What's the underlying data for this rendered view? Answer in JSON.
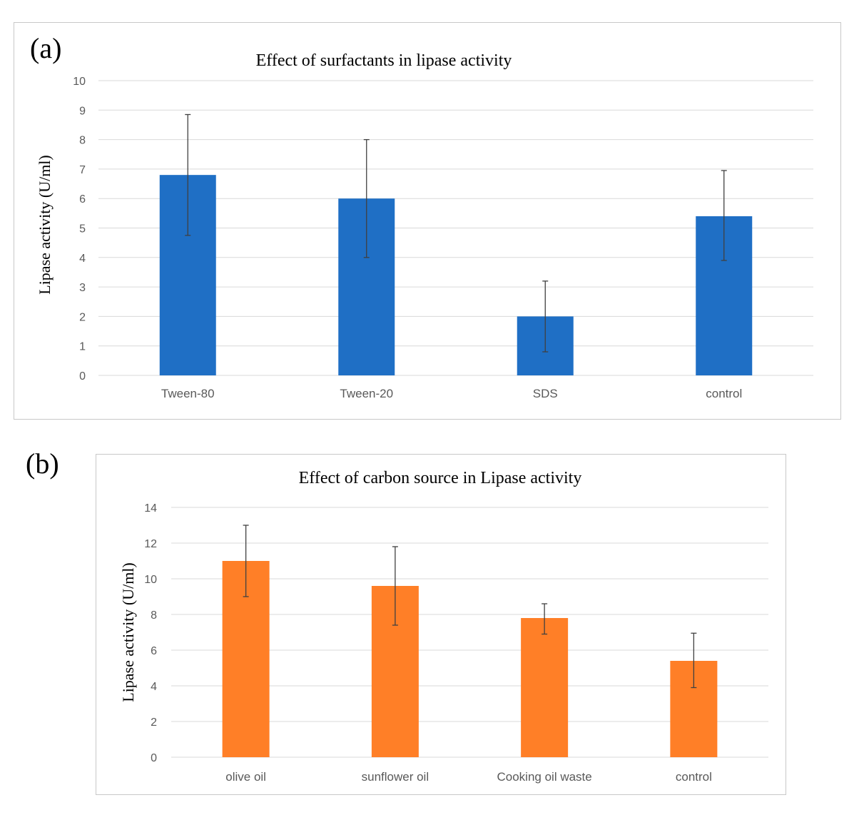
{
  "figure": {
    "panel_a_letter": "(a)",
    "panel_b_letter": "(b)"
  },
  "chart_data": [
    {
      "type": "bar",
      "title": "Effect  of  surfactants  in  lipase  activity",
      "xlabel": "",
      "ylabel": "Lipase  activity  (U/ml)",
      "categories": [
        "Tween-80",
        "Tween-20",
        "SDS",
        "control"
      ],
      "values": [
        6.8,
        6.0,
        2.0,
        5.4
      ],
      "error_low": [
        4.75,
        4.0,
        0.8,
        3.9
      ],
      "error_high": [
        8.85,
        8.0,
        3.2,
        6.95
      ],
      "ylim": [
        0,
        10
      ],
      "yticks": [
        0,
        1,
        2,
        3,
        4,
        5,
        6,
        7,
        8,
        9,
        10
      ],
      "grid": true,
      "bar_color": "#1f6fc5"
    },
    {
      "type": "bar",
      "title": "Effect  of  carbon  source  in  Lipase  activity",
      "xlabel": "",
      "ylabel": "Lipase  activity  (U/ml)",
      "categories": [
        "olive oil",
        "sunflower oil",
        "Cooking oil waste",
        "control"
      ],
      "values": [
        11.0,
        9.6,
        7.8,
        5.4
      ],
      "error_low": [
        9.0,
        7.4,
        6.9,
        3.9
      ],
      "error_high": [
        13.0,
        11.8,
        8.6,
        6.95
      ],
      "ylim": [
        0,
        14
      ],
      "yticks": [
        0,
        2,
        4,
        6,
        8,
        10,
        12,
        14
      ],
      "grid": true,
      "bar_color": "#ff7f27"
    }
  ]
}
